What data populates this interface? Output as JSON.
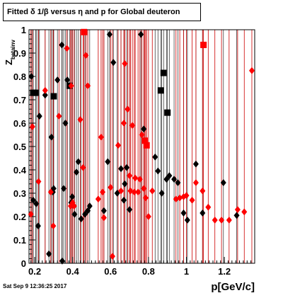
{
  "title": "Fitted δ 1/β versus η and p for Global deuteron",
  "stamp": "Sat Sep  9 12:36:25 2017",
  "colors": {
    "black": "#000000",
    "red": "#ff0000",
    "dark_red": "#cc0000",
    "dark_gray": "#444444"
  },
  "chart_data": {
    "type": "scatter",
    "title": "Fitted δ 1/β versus η and p for Global deuteron",
    "xlabel": "p[GeV/c]",
    "ylabel": "Z_{betainv}",
    "xlim": [
      0.17,
      1.36
    ],
    "ylim": [
      0,
      1
    ],
    "x_ticks": [
      0.2,
      0.4,
      0.6,
      0.8,
      1,
      1.2
    ],
    "y_ticks": [
      0,
      0.1,
      0.2,
      0.3,
      0.4,
      0.5,
      0.6,
      0.7,
      0.8,
      0.9,
      1
    ],
    "grid": "vertical lines at each point's p (black series dark, red series red)",
    "series": [
      {
        "color": "black",
        "points": [
          {
            "x": 0.182,
            "y": 0.8,
            "m": "d"
          },
          {
            "x": 0.192,
            "y": 0.73,
            "m": "s"
          },
          {
            "x": 0.205,
            "y": 0.73,
            "m": "s"
          },
          {
            "x": 0.192,
            "y": 0.27,
            "m": "d"
          },
          {
            "x": 0.208,
            "y": 0.255,
            "m": "d"
          },
          {
            "x": 0.225,
            "y": 0.63,
            "m": "d"
          },
          {
            "x": 0.218,
            "y": 0.16,
            "m": "d"
          },
          {
            "x": 0.255,
            "y": 0.72,
            "m": "d"
          },
          {
            "x": 0.275,
            "y": 0.04,
            "m": "d"
          },
          {
            "x": 0.288,
            "y": 0.54,
            "m": "d"
          },
          {
            "x": 0.296,
            "y": 0.305,
            "m": "d"
          },
          {
            "x": 0.3,
            "y": 0.32,
            "m": "d"
          },
          {
            "x": 0.3,
            "y": 0.715,
            "m": "s"
          },
          {
            "x": 0.32,
            "y": 0.785,
            "m": "d"
          },
          {
            "x": 0.343,
            "y": 0.935,
            "m": "d"
          },
          {
            "x": 0.345,
            "y": 0.01,
            "m": "d"
          },
          {
            "x": 0.353,
            "y": 0.32,
            "m": "d"
          },
          {
            "x": 0.362,
            "y": 0.6,
            "m": "d"
          },
          {
            "x": 0.372,
            "y": 0.785,
            "m": "d"
          },
          {
            "x": 0.384,
            "y": 0.76,
            "m": "s"
          },
          {
            "x": 0.392,
            "y": 0.26,
            "m": "d"
          },
          {
            "x": 0.398,
            "y": 0.285,
            "m": "d"
          },
          {
            "x": 0.41,
            "y": 0.21,
            "m": "d"
          },
          {
            "x": 0.42,
            "y": 0.39,
            "m": "d"
          },
          {
            "x": 0.43,
            "y": 0.435,
            "m": "d"
          },
          {
            "x": 0.445,
            "y": 0.19,
            "m": "d"
          },
          {
            "x": 0.465,
            "y": 0.21,
            "m": "d"
          },
          {
            "x": 0.48,
            "y": 0.225,
            "m": "d"
          },
          {
            "x": 0.49,
            "y": 0.245,
            "m": "d"
          },
          {
            "x": 0.565,
            "y": 0.225,
            "m": "d"
          },
          {
            "x": 0.585,
            "y": 0.435,
            "m": "d"
          },
          {
            "x": 0.595,
            "y": 0.98,
            "m": "d"
          },
          {
            "x": 0.615,
            "y": 0.86,
            "m": "d"
          },
          {
            "x": 0.635,
            "y": 0.3,
            "m": "d"
          },
          {
            "x": 0.655,
            "y": 0.405,
            "m": "d"
          },
          {
            "x": 0.67,
            "y": 0.27,
            "m": "d"
          },
          {
            "x": 0.675,
            "y": 0.34,
            "m": "d"
          },
          {
            "x": 0.685,
            "y": 0.41,
            "m": "d"
          },
          {
            "x": 0.7,
            "y": 0.23,
            "m": "d"
          },
          {
            "x": 0.76,
            "y": 0.98,
            "m": "d"
          },
          {
            "x": 0.775,
            "y": 0.575,
            "m": "d"
          },
          {
            "x": 0.835,
            "y": 0.455,
            "m": "d"
          },
          {
            "x": 0.85,
            "y": 0.395,
            "m": "d"
          },
          {
            "x": 0.865,
            "y": 0.74,
            "m": "s"
          },
          {
            "x": 0.87,
            "y": 0.3,
            "m": "d"
          },
          {
            "x": 0.88,
            "y": 0.815,
            "m": "s"
          },
          {
            "x": 0.895,
            "y": 0.36,
            "m": "d"
          },
          {
            "x": 0.9,
            "y": 0.645,
            "m": "s"
          },
          {
            "x": 0.91,
            "y": 0.375,
            "m": "d"
          },
          {
            "x": 0.935,
            "y": 0.36,
            "m": "d"
          },
          {
            "x": 0.955,
            "y": 0.345,
            "m": "d"
          },
          {
            "x": 0.985,
            "y": 0.215,
            "m": "d"
          },
          {
            "x": 1.005,
            "y": 0.185,
            "m": "d"
          },
          {
            "x": 1.05,
            "y": 0.425,
            "m": "d"
          },
          {
            "x": 1.085,
            "y": 0.215,
            "m": "d"
          },
          {
            "x": 1.195,
            "y": 0.345,
            "m": "d"
          },
          {
            "x": 1.265,
            "y": 0.205,
            "m": "d"
          }
        ]
      },
      {
        "color": "red",
        "points": [
          {
            "x": 0.18,
            "y": 0.21,
            "m": "d"
          },
          {
            "x": 0.188,
            "y": 0.585,
            "m": "d"
          },
          {
            "x": 0.22,
            "y": 0.35,
            "m": "d"
          },
          {
            "x": 0.255,
            "y": 0.74,
            "m": "d"
          },
          {
            "x": 0.285,
            "y": 0.305,
            "m": "d"
          },
          {
            "x": 0.298,
            "y": 0.16,
            "m": "d"
          },
          {
            "x": 0.328,
            "y": 0.63,
            "m": "d"
          },
          {
            "x": 0.37,
            "y": 0.92,
            "m": "d"
          },
          {
            "x": 0.39,
            "y": 0.245,
            "m": "d"
          },
          {
            "x": 0.392,
            "y": 0.76,
            "m": "d"
          },
          {
            "x": 0.4,
            "y": 0.26,
            "m": "d"
          },
          {
            "x": 0.408,
            "y": 0.245,
            "m": "d"
          },
          {
            "x": 0.44,
            "y": 0.615,
            "m": "d"
          },
          {
            "x": 0.455,
            "y": 0.41,
            "m": "d"
          },
          {
            "x": 0.46,
            "y": 0.99,
            "m": "s"
          },
          {
            "x": 0.47,
            "y": 0.89,
            "m": "d"
          },
          {
            "x": 0.48,
            "y": 0.76,
            "m": "d"
          },
          {
            "x": 0.535,
            "y": 0.275,
            "m": "d"
          },
          {
            "x": 0.55,
            "y": 0.54,
            "m": "d"
          },
          {
            "x": 0.558,
            "y": 0.305,
            "m": "d"
          },
          {
            "x": 0.565,
            "y": 0.195,
            "m": "d"
          },
          {
            "x": 0.6,
            "y": 0.325,
            "m": "d"
          },
          {
            "x": 0.61,
            "y": 0.03,
            "m": "d"
          },
          {
            "x": 0.64,
            "y": 0.505,
            "m": "d"
          },
          {
            "x": 0.655,
            "y": 0.31,
            "m": "d"
          },
          {
            "x": 0.67,
            "y": 0.6,
            "m": "d"
          },
          {
            "x": 0.675,
            "y": 0.855,
            "m": "d"
          },
          {
            "x": 0.69,
            "y": 0.66,
            "m": "d"
          },
          {
            "x": 0.7,
            "y": 0.375,
            "m": "d"
          },
          {
            "x": 0.705,
            "y": 0.31,
            "m": "d"
          },
          {
            "x": 0.715,
            "y": 0.59,
            "m": "d"
          },
          {
            "x": 0.725,
            "y": 0.305,
            "m": "d"
          },
          {
            "x": 0.73,
            "y": 0.365,
            "m": "d"
          },
          {
            "x": 0.745,
            "y": 0.305,
            "m": "d"
          },
          {
            "x": 0.755,
            "y": 0.36,
            "m": "d"
          },
          {
            "x": 0.765,
            "y": 0.55,
            "m": "d"
          },
          {
            "x": 0.775,
            "y": 0.32,
            "m": "d"
          },
          {
            "x": 0.78,
            "y": 0.525,
            "m": "s"
          },
          {
            "x": 0.785,
            "y": 0.28,
            "m": "d"
          },
          {
            "x": 0.79,
            "y": 0.505,
            "m": "s"
          },
          {
            "x": 0.8,
            "y": 0.2,
            "m": "d"
          },
          {
            "x": 0.82,
            "y": 0.31,
            "m": "d"
          },
          {
            "x": 0.945,
            "y": 0.275,
            "m": "d"
          },
          {
            "x": 0.965,
            "y": 0.28,
            "m": "d"
          },
          {
            "x": 0.985,
            "y": 0.285,
            "m": "d"
          },
          {
            "x": 1.0,
            "y": 0.29,
            "m": "d"
          },
          {
            "x": 1.03,
            "y": 0.27,
            "m": "d"
          },
          {
            "x": 1.05,
            "y": 0.345,
            "m": "d"
          },
          {
            "x": 1.085,
            "y": 0.31,
            "m": "d"
          },
          {
            "x": 1.09,
            "y": 0.935,
            "m": "s"
          },
          {
            "x": 1.115,
            "y": 0.24,
            "m": "d"
          },
          {
            "x": 1.15,
            "y": 0.185,
            "m": "d"
          },
          {
            "x": 1.185,
            "y": 0.185,
            "m": "d"
          },
          {
            "x": 1.225,
            "y": 0.185,
            "m": "d"
          },
          {
            "x": 1.27,
            "y": 0.23,
            "m": "d"
          },
          {
            "x": 1.305,
            "y": 0.22,
            "m": "d"
          },
          {
            "x": 1.345,
            "y": 0.825,
            "m": "d"
          }
        ]
      }
    ]
  }
}
